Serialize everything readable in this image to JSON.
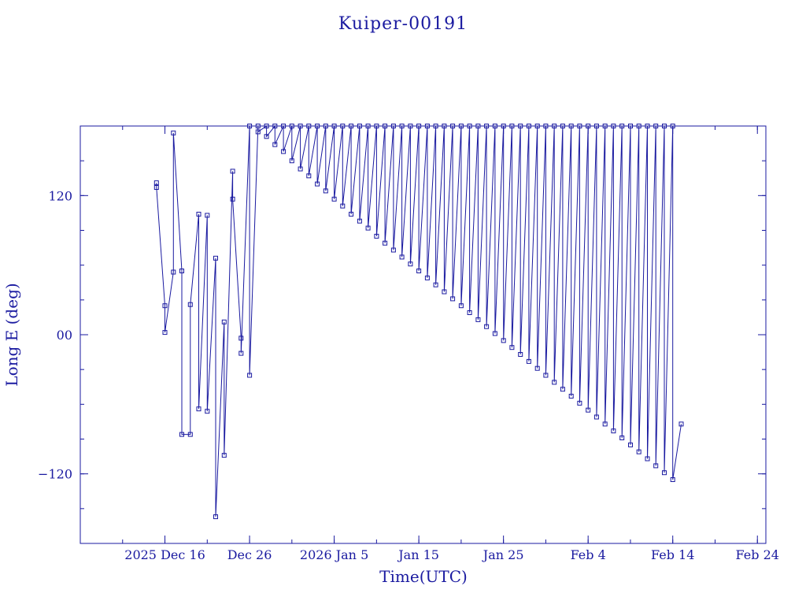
{
  "colors": {
    "ink": "#1a1aa0",
    "background": "#ffffff"
  },
  "chart_data": {
    "type": "line",
    "title": "Kuiper-00191",
    "xlabel": "Time(UTC)",
    "ylabel": "Long E (deg)",
    "xlim": [
      "2025-12-06",
      "2026-02-25"
    ],
    "ylim": [
      -180,
      180
    ],
    "x_ticks": [
      {
        "date": "2025-12-16",
        "label": "2025 Dec 16"
      },
      {
        "date": "2025-12-26",
        "label": "Dec 26"
      },
      {
        "date": "2026-01-05",
        "label": "2026 Jan  5"
      },
      {
        "date": "2026-01-15",
        "label": "Jan 15"
      },
      {
        "date": "2026-01-25",
        "label": "Jan 25"
      },
      {
        "date": "2026-02-04",
        "label": "Feb  4"
      },
      {
        "date": "2026-02-14",
        "label": "Feb 14"
      },
      {
        "date": "2026-02-24",
        "label": "Feb 24"
      }
    ],
    "y_ticks": [
      {
        "value": 120,
        "label": "120"
      },
      {
        "value": 0,
        "label": "00"
      },
      {
        "value": -120,
        "label": "−120"
      }
    ],
    "grid": false,
    "series": [
      {
        "marker": "square",
        "x": [
          "2025-12-15",
          "2025-12-15",
          "2025-12-16",
          "2025-12-16",
          "2025-12-17",
          "2025-12-17",
          "2025-12-18",
          "2025-12-18",
          "2025-12-19",
          "2025-12-19",
          "2025-12-20",
          "2025-12-20",
          "2025-12-21",
          "2025-12-21",
          "2025-12-22",
          "2025-12-22",
          "2025-12-23",
          "2025-12-23",
          "2025-12-24",
          "2025-12-24",
          "2025-12-25",
          "2025-12-25",
          "2025-12-26",
          "2025-12-26",
          "2025-12-27",
          "2025-12-27",
          "2025-12-28",
          "2025-12-28",
          "2025-12-29",
          "2025-12-29",
          "2025-12-30",
          "2025-12-30",
          "2025-12-31",
          "2025-12-31",
          "2026-01-01",
          "2026-01-01",
          "2026-01-02",
          "2026-01-02",
          "2026-01-03",
          "2026-01-03",
          "2026-01-04",
          "2026-01-04",
          "2026-01-05",
          "2026-01-05",
          "2026-01-06",
          "2026-01-06",
          "2026-01-07",
          "2026-01-07",
          "2026-01-08",
          "2026-01-08",
          "2026-01-09",
          "2026-01-09",
          "2026-01-10",
          "2026-01-10",
          "2026-01-11",
          "2026-01-11",
          "2026-01-12",
          "2026-01-12",
          "2026-01-13",
          "2026-01-13",
          "2026-01-14",
          "2026-01-14",
          "2026-01-15",
          "2026-01-15",
          "2026-01-16",
          "2026-01-16",
          "2026-01-17",
          "2026-01-17",
          "2026-01-18",
          "2026-01-18",
          "2026-01-19",
          "2026-01-19",
          "2026-01-20",
          "2026-01-20",
          "2026-01-21",
          "2026-01-21",
          "2026-01-22",
          "2026-01-22",
          "2026-01-23",
          "2026-01-23",
          "2026-01-24",
          "2026-01-24",
          "2026-01-25",
          "2026-01-25",
          "2026-01-26",
          "2026-01-26",
          "2026-01-27",
          "2026-01-27",
          "2026-01-28",
          "2026-01-28",
          "2026-01-29",
          "2026-01-29",
          "2026-01-30",
          "2026-01-30",
          "2026-01-31",
          "2026-01-31",
          "2026-02-01",
          "2026-02-01",
          "2026-02-02",
          "2026-02-02",
          "2026-02-03",
          "2026-02-03",
          "2026-02-04",
          "2026-02-04",
          "2026-02-05",
          "2026-02-05",
          "2026-02-06",
          "2026-02-06",
          "2026-02-07",
          "2026-02-07",
          "2026-02-08",
          "2026-02-08",
          "2026-02-09",
          "2026-02-09",
          "2026-02-10",
          "2026-02-10",
          "2026-02-11",
          "2026-02-11",
          "2026-02-12",
          "2026-02-12",
          "2026-02-13",
          "2026-02-13",
          "2026-02-14",
          "2026-02-14",
          "2026-02-15"
        ],
        "y": [
          131,
          127,
          25,
          2,
          54,
          174,
          55,
          -86,
          -86,
          26,
          104,
          -64,
          103,
          -66,
          66,
          -157,
          11,
          -104,
          141,
          117,
          -3,
          -16,
          180,
          -35,
          180,
          175,
          180,
          171,
          180,
          164,
          180,
          158,
          180,
          150,
          180,
          143,
          180,
          137,
          180,
          130,
          180,
          124,
          180,
          117,
          180,
          111,
          180,
          104,
          180,
          98,
          180,
          92,
          180,
          85,
          180,
          79,
          180,
          73,
          180,
          67,
          180,
          61,
          180,
          55,
          180,
          49,
          180,
          43,
          180,
          37,
          180,
          31,
          180,
          25,
          180,
          19,
          180,
          13,
          180,
          7,
          180,
          1,
          180,
          -5,
          180,
          -11,
          180,
          -17,
          180,
          -23,
          180,
          -29,
          180,
          -35,
          180,
          -41,
          180,
          -47,
          180,
          -53,
          180,
          -59,
          180,
          -65,
          180,
          -71,
          180,
          -77,
          180,
          -83,
          180,
          -89,
          180,
          -95,
          180,
          -101,
          180,
          -107,
          180,
          -113,
          180,
          -119,
          180,
          -125,
          -77
        ]
      }
    ]
  }
}
